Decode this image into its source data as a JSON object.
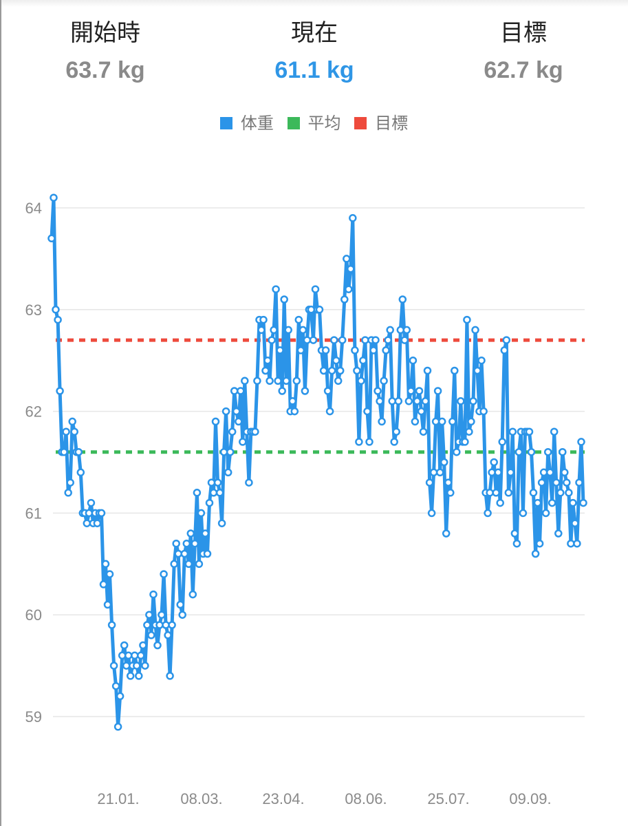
{
  "header": {
    "start": {
      "label": "開始時",
      "value": "63.7 kg"
    },
    "current": {
      "label": "現在",
      "value": "61.1 kg"
    },
    "goal": {
      "label": "目標",
      "value": "62.7 kg"
    }
  },
  "legend": [
    {
      "label": "体重",
      "color": "#2b94e8"
    },
    {
      "label": "平均",
      "color": "#3cb95a"
    },
    {
      "label": "目標",
      "color": "#ee4a3c"
    }
  ],
  "chart_data": {
    "type": "line",
    "title": "",
    "xlabel": "",
    "ylabel": "",
    "ylim": [
      58.7,
      64.2
    ],
    "grid": true,
    "legend_position": "top",
    "y_ticks": [
      64,
      63,
      62,
      61,
      60,
      59
    ],
    "x_ticks": [
      "21.01.",
      "08.03.",
      "23.04.",
      "08.06.",
      "25.07.",
      "09.09."
    ],
    "reference_lines": [
      {
        "name": "平均",
        "value": 61.6,
        "color": "#3cb95a",
        "style": "dashed"
      },
      {
        "name": "目標",
        "value": 62.7,
        "color": "#ee4a3c",
        "style": "dashed"
      }
    ],
    "series": [
      {
        "name": "体重",
        "color": "#2b94e8",
        "values": [
          63.7,
          64.1,
          63.0,
          62.9,
          62.2,
          61.6,
          61.6,
          61.8,
          61.2,
          61.3,
          61.9,
          61.8,
          61.6,
          61.6,
          61.4,
          61.0,
          61.0,
          60.9,
          61.0,
          61.1,
          60.9,
          61.0,
          60.9,
          61.0,
          61.0,
          60.3,
          60.5,
          60.1,
          60.4,
          59.9,
          59.5,
          59.3,
          58.9,
          59.2,
          59.6,
          59.7,
          59.5,
          59.6,
          59.4,
          59.5,
          59.6,
          59.5,
          59.4,
          59.6,
          59.7,
          59.5,
          59.9,
          60.0,
          59.8,
          60.2,
          59.9,
          59.7,
          59.9,
          60.0,
          60.4,
          59.9,
          59.8,
          59.4,
          59.9,
          60.5,
          60.7,
          60.6,
          60.1,
          60.0,
          60.6,
          60.7,
          60.5,
          60.8,
          60.2,
          60.7,
          61.2,
          60.5,
          61.0,
          60.6,
          60.8,
          60.6,
          61.1,
          61.3,
          61.2,
          61.9,
          61.3,
          61.2,
          60.9,
          61.6,
          62.0,
          61.4,
          61.6,
          61.8,
          62.2,
          62.0,
          61.9,
          62.2,
          61.7,
          62.3,
          61.8,
          61.3,
          61.8,
          61.8,
          61.8,
          62.3,
          62.9,
          62.8,
          62.9,
          62.4,
          62.5,
          62.3,
          62.7,
          62.8,
          63.2,
          62.3,
          62.6,
          62.2,
          63.1,
          62.3,
          62.8,
          62.0,
          62.1,
          62.0,
          62.3,
          62.9,
          62.6,
          62.8,
          62.2,
          62.7,
          63.0,
          63.0,
          62.7,
          63.2,
          63.0,
          63.0,
          62.6,
          62.4,
          62.6,
          62.2,
          62.0,
          62.4,
          62.7,
          62.5,
          62.3,
          62.4,
          62.7,
          63.1,
          63.5,
          63.2,
          63.4,
          63.9,
          62.6,
          62.4,
          61.7,
          62.3,
          62.5,
          62.7,
          62.0,
          61.7,
          62.7,
          62.6,
          62.7,
          62.2,
          62.1,
          61.9,
          62.3,
          62.6,
          62.7,
          62.8,
          62.1,
          61.7,
          61.8,
          62.1,
          62.8,
          63.1,
          62.7,
          62.8,
          62.1,
          62.2,
          62.5,
          61.9,
          62.1,
          62.2,
          62.0,
          61.8,
          62.1,
          62.4,
          61.3,
          61.0,
          61.4,
          61.9,
          62.2,
          61.4,
          61.9,
          61.5,
          60.8,
          61.3,
          61.2,
          61.9,
          62.4,
          61.6,
          61.7,
          62.1,
          61.7,
          61.7,
          62.9,
          61.8,
          61.9,
          62.1,
          62.8,
          62.4,
          62.0,
          62.5,
          62.0,
          61.2,
          61.0,
          61.2,
          61.4,
          61.5,
          61.2,
          61.4,
          61.1,
          61.7,
          62.6,
          62.7,
          61.2,
          61.4,
          61.8,
          60.8,
          60.7,
          61.6,
          61.8,
          61.0,
          61.8,
          61.8,
          61.8,
          61.6,
          61.2,
          60.6,
          61.1,
          60.7,
          61.3,
          61.4,
          61.0,
          61.6,
          61.4,
          61.1,
          61.8,
          61.3,
          60.8,
          61.2,
          61.6,
          61.4,
          61.3,
          61.2,
          60.7,
          61.1,
          60.9,
          60.7,
          61.3,
          61.7,
          61.1
        ]
      }
    ]
  }
}
